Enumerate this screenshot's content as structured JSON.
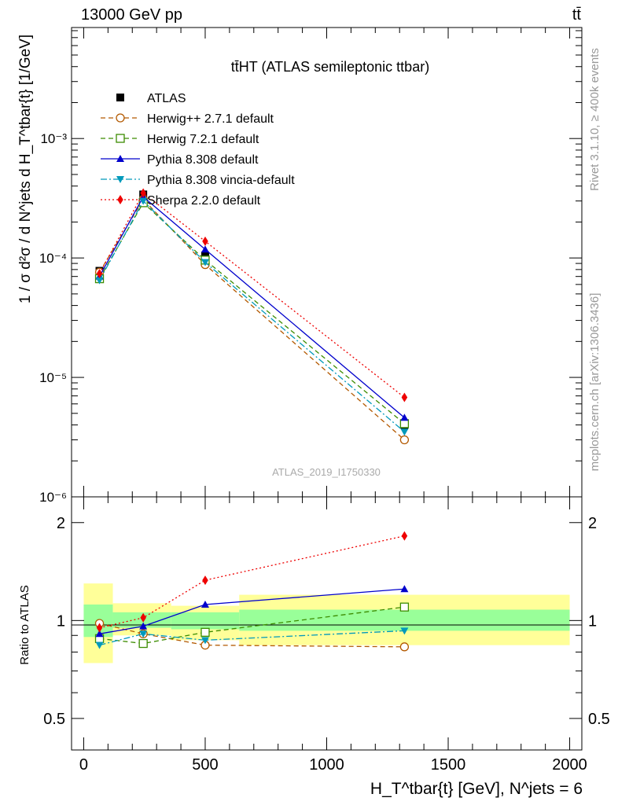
{
  "header": {
    "left": "13000 GeV pp",
    "right": "tt̄",
    "side_right_top": "Rivet 3.1.10, ≥ 400k events",
    "side_right_bottom": "mcplots.cern.ch [arXiv:1306.3436]"
  },
  "chart_data": [
    {
      "type": "line",
      "title": "tt̄HT (ATLAS semileptonic ttbar)",
      "watermark": "ATLAS_2019_I1750330",
      "ylabel": "1 / σ d²σ / d N^jets d H_T^tbar{t} [1/GeV]",
      "yscale": "log",
      "ylim": [
        1e-06,
        0.0085
      ],
      "xlim": [
        -50,
        2050
      ],
      "y_tick_labels": [
        "10⁻⁶",
        "10⁻⁵",
        "10⁻⁴",
        "10⁻³"
      ],
      "y_tick_values": [
        1e-06,
        1e-05,
        0.0001,
        0.001
      ],
      "x": [
        65,
        245,
        500,
        1320
      ],
      "series": [
        {
          "name": "ATLAS",
          "color": "#000000",
          "marker": "square-filled",
          "values": [
            7.8e-05,
            0.00034,
            0.000105,
            4e-06
          ]
        },
        {
          "name": "Herwig++ 2.7.1 default",
          "color": "#b35900",
          "marker": "circle-open",
          "dash": "dashed",
          "values": [
            7.6e-05,
            0.00031,
            8.8e-05,
            3e-06
          ]
        },
        {
          "name": "Herwig 7.2.1 default",
          "color": "#3c8c00",
          "marker": "square-open",
          "dash": "dashed",
          "values": [
            6.7e-05,
            0.00029,
            9.6e-05,
            4.1e-06
          ]
        },
        {
          "name": "Pythia 8.308 default",
          "color": "#0000cc",
          "marker": "triangle-up",
          "dash": "solid",
          "values": [
            7e-05,
            0.000325,
            0.000118,
            4.6e-06
          ]
        },
        {
          "name": "Pythia 8.308 vincia-default",
          "color": "#0099bb",
          "marker": "triangle-down",
          "dash": "dashdot",
          "values": [
            6.5e-05,
            0.0003,
            9.2e-05,
            3.5e-06
          ]
        },
        {
          "name": "Sherpa 2.2.0 default",
          "color": "#ee0000",
          "marker": "diamond",
          "dash": "dotted",
          "values": [
            7.4e-05,
            0.00035,
            0.000138,
            6.8e-06
          ]
        }
      ]
    },
    {
      "type": "line",
      "ylabel": "Ratio to ATLAS",
      "xlabel": "H_T^tbar{t} [GeV], N^jets = 6",
      "yscale": "log",
      "ylim": [
        0.4,
        2.4
      ],
      "xlim": [
        -50,
        2050
      ],
      "x_tick_labels": [
        "0",
        "500",
        "1000",
        "1500",
        "2000"
      ],
      "x_tick_values": [
        0,
        500,
        1000,
        1500,
        2000
      ],
      "y_tick_labels": [
        "0.5",
        "1",
        "2"
      ],
      "y_tick_values": [
        0.5,
        1,
        2
      ],
      "x": [
        65,
        245,
        500,
        1320
      ],
      "bands": [
        {
          "xmin": 0,
          "xmax": 120,
          "inner": [
            0.89,
            1.12
          ],
          "outer": [
            0.74,
            1.3
          ]
        },
        {
          "xmin": 120,
          "xmax": 360,
          "inner": [
            0.95,
            1.06
          ],
          "outer": [
            0.9,
            1.13
          ]
        },
        {
          "xmin": 360,
          "xmax": 640,
          "inner": [
            0.94,
            1.06
          ],
          "outer": [
            0.87,
            1.11
          ]
        },
        {
          "xmin": 640,
          "xmax": 2000,
          "inner": [
            0.93,
            1.08
          ],
          "outer": [
            0.84,
            1.2
          ]
        }
      ],
      "series": [
        {
          "name": "Herwig++ 2.7.1 default",
          "color": "#b35900",
          "marker": "circle-open",
          "dash": "dashed",
          "values": [
            0.98,
            0.91,
            0.84,
            0.83
          ]
        },
        {
          "name": "Herwig 7.2.1 default",
          "color": "#3c8c00",
          "marker": "square-open",
          "dash": "dashed",
          "values": [
            0.88,
            0.85,
            0.92,
            1.1
          ]
        },
        {
          "name": "Pythia 8.308 default",
          "color": "#0000cc",
          "marker": "triangle-up",
          "dash": "solid",
          "values": [
            0.91,
            0.96,
            1.12,
            1.25
          ]
        },
        {
          "name": "Pythia 8.308 vincia-default",
          "color": "#0099bb",
          "marker": "triangle-down",
          "dash": "dashdot",
          "values": [
            0.84,
            0.91,
            0.87,
            0.93
          ]
        },
        {
          "name": "Sherpa 2.2.0 default",
          "color": "#ee0000",
          "marker": "diamond",
          "dash": "dotted",
          "values": [
            0.95,
            1.02,
            1.33,
            1.82
          ]
        }
      ]
    }
  ]
}
